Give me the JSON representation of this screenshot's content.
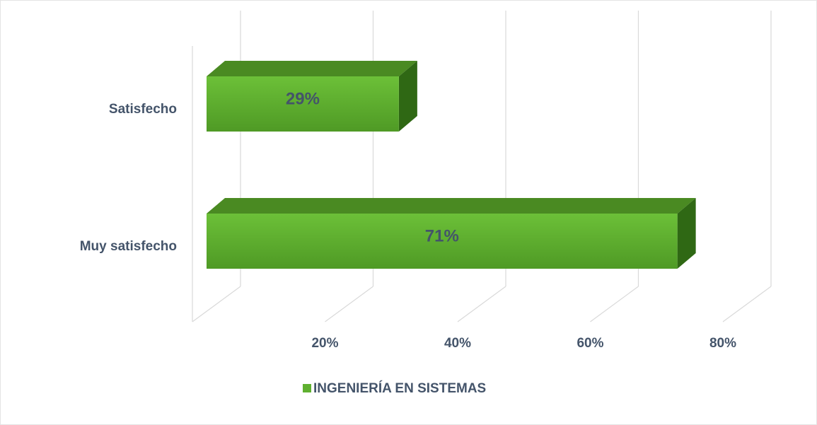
{
  "chart_data": {
    "type": "bar3d",
    "orientation": "horizontal",
    "categories": [
      "Satisfecho",
      "Muy satisfecho"
    ],
    "series": [
      {
        "name": "INGENIERÍA EN SISTEMAS",
        "color": "#5fb030",
        "values": [
          29,
          71
        ],
        "value_labels": [
          "29%",
          "71%"
        ]
      }
    ],
    "xlim": [
      0,
      80
    ],
    "xticks": [
      {
        "value": 20,
        "label": "20%"
      },
      {
        "value": 40,
        "label": "40%"
      },
      {
        "value": 60,
        "label": "60%"
      },
      {
        "value": 80,
        "label": "80%"
      }
    ],
    "grid": true,
    "legend": "bottom"
  }
}
